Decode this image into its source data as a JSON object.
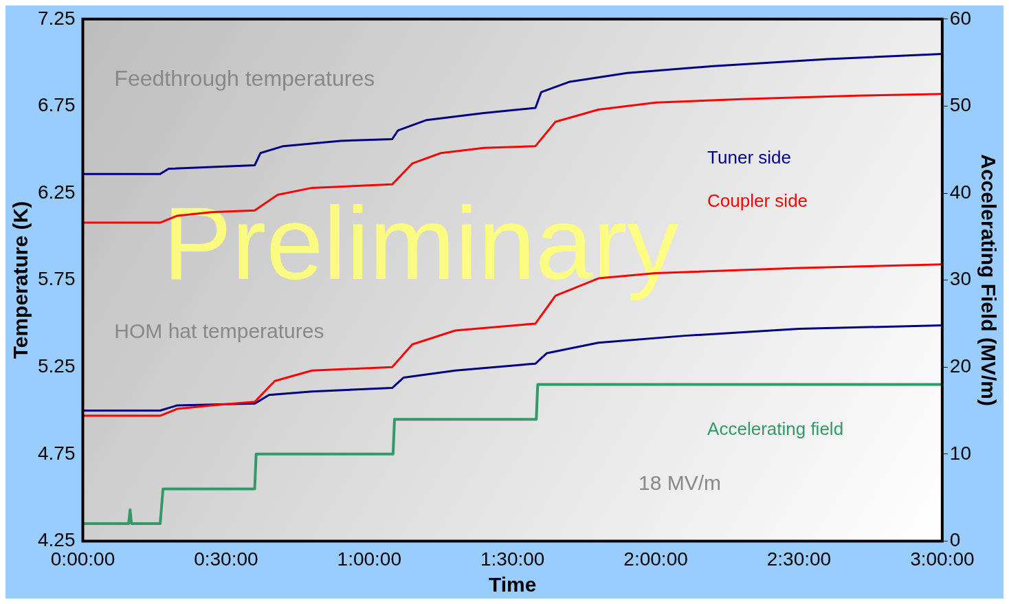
{
  "chart_data": {
    "type": "line",
    "xlabel": "Time",
    "ylabel": "Temperature (K)",
    "y2label": "Accelerating Field (MV/m)",
    "xlim": [
      0,
      3
    ],
    "xticks": [
      {
        "value": 0,
        "label": "0:00:00"
      },
      {
        "value": 0.5,
        "label": "0:30:00"
      },
      {
        "value": 1,
        "label": "1:00:00"
      },
      {
        "value": 1.5,
        "label": "1:30:00"
      },
      {
        "value": 2,
        "label": "2:00:00"
      },
      {
        "value": 2.5,
        "label": "2:30:00"
      },
      {
        "value": 3,
        "label": "3:00:00"
      }
    ],
    "ylim": [
      4.25,
      7.25
    ],
    "yticks": [
      4.25,
      4.75,
      5.25,
      5.75,
      6.25,
      6.75,
      7.25
    ],
    "y2lim": [
      0,
      60
    ],
    "y2ticks": [
      0,
      10,
      20,
      30,
      40,
      50,
      60
    ],
    "grid": false,
    "legend": false,
    "marker": "none",
    "line_style": "solid",
    "annotations": [
      "Feedthrough temperatures",
      "HOM hat temperatures",
      "18 MV/m",
      "Preliminary"
    ],
    "series": [
      {
        "name": "Tuner side",
        "color": "#000080",
        "x": [
          0,
          0.27,
          0.3,
          0.6,
          0.62,
          0.7,
          0.9,
          1.08,
          1.1,
          1.2,
          1.4,
          1.58,
          1.6,
          1.7,
          1.9,
          2.2,
          2.6,
          3
        ],
        "values": [
          6.36,
          6.36,
          6.39,
          6.41,
          6.48,
          6.52,
          6.55,
          6.56,
          6.61,
          6.67,
          6.71,
          6.74,
          6.83,
          6.89,
          6.94,
          6.98,
          7.02,
          7.05
        ]
      },
      {
        "name": "Coupler side",
        "color": "#ff0000",
        "x": [
          0,
          0.27,
          0.33,
          0.45,
          0.6,
          0.68,
          0.8,
          1.08,
          1.15,
          1.25,
          1.4,
          1.58,
          1.65,
          1.8,
          2,
          2.3,
          2.7,
          3
        ],
        "values": [
          6.08,
          6.08,
          6.12,
          6.14,
          6.15,
          6.24,
          6.28,
          6.3,
          6.42,
          6.48,
          6.51,
          6.52,
          6.66,
          6.73,
          6.77,
          6.79,
          6.81,
          6.82
        ]
      },
      {
        "color": "#ff0000",
        "x": [
          0,
          0.27,
          0.33,
          0.45,
          0.6,
          0.67,
          0.8,
          1.08,
          1.15,
          1.3,
          1.58,
          1.65,
          1.8,
          2,
          2.5,
          3
        ],
        "values": [
          4.97,
          4.97,
          5.01,
          5.03,
          5.05,
          5.17,
          5.23,
          5.25,
          5.38,
          5.46,
          5.5,
          5.66,
          5.76,
          5.79,
          5.82,
          5.84
        ]
      },
      {
        "color": "#000080",
        "x": [
          0,
          0.27,
          0.33,
          0.6,
          0.65,
          0.8,
          1.08,
          1.12,
          1.3,
          1.58,
          1.62,
          1.8,
          2.1,
          2.5,
          3
        ],
        "values": [
          5,
          5,
          5.03,
          5.04,
          5.09,
          5.11,
          5.13,
          5.19,
          5.23,
          5.27,
          5.33,
          5.39,
          5.43,
          5.47,
          5.49
        ]
      },
      {
        "name": "Accelerating field",
        "color": "#339966",
        "axis": "y2",
        "x": [
          0,
          0.16,
          0.165,
          0.17,
          0.27,
          0.28,
          0.6,
          0.605,
          1.083,
          1.088,
          1.583,
          1.588,
          3
        ],
        "values": [
          2,
          2,
          3.6,
          2,
          2,
          6,
          6,
          10,
          10,
          14,
          14,
          18,
          18
        ]
      }
    ]
  }
}
